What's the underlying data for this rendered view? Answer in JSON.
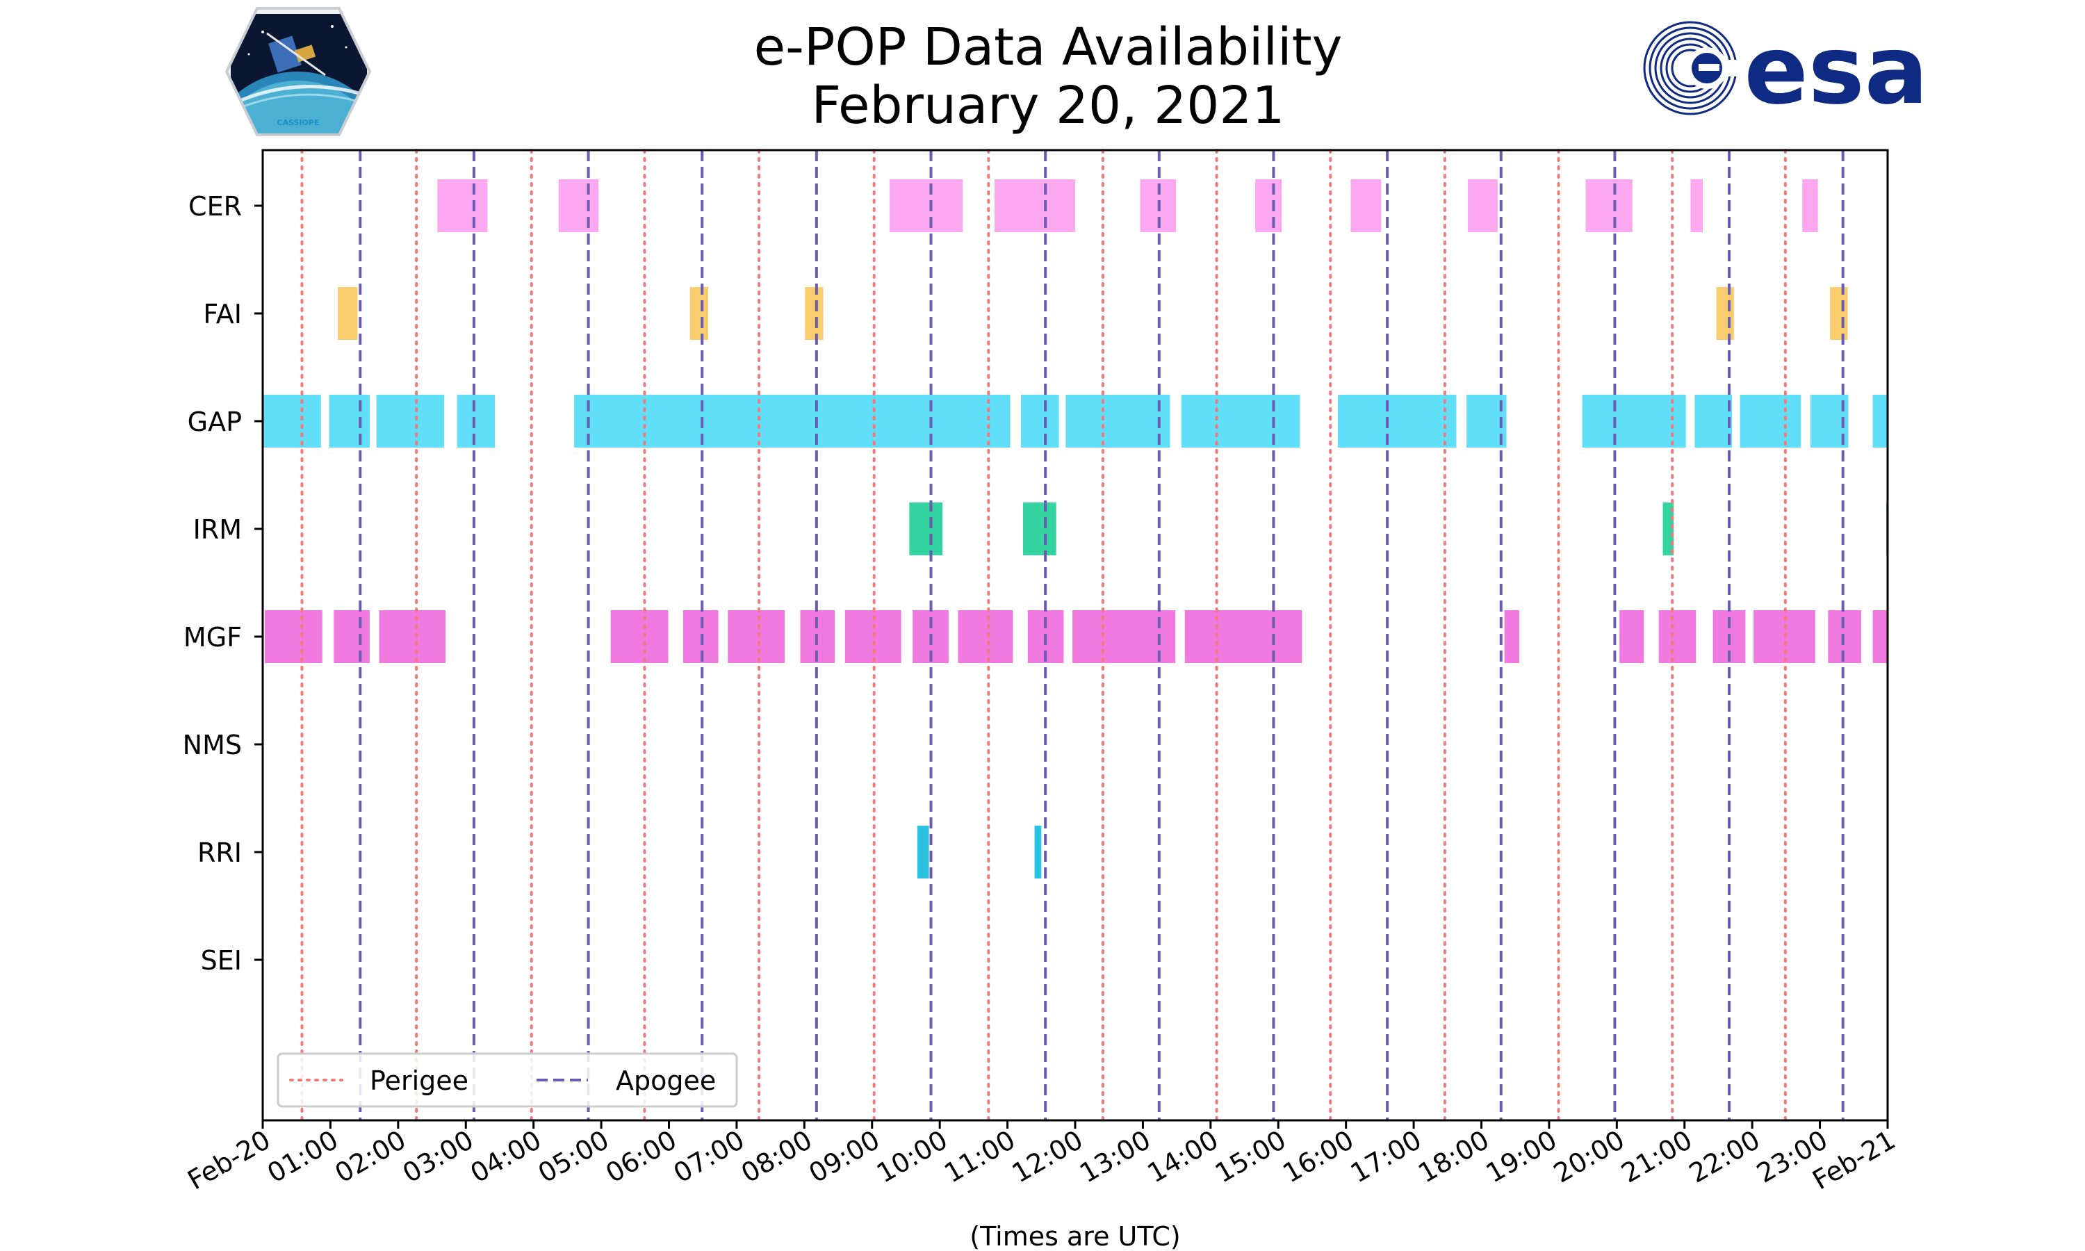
{
  "title_line1": "e-POP Data Availability",
  "title_line2": "February 20, 2021",
  "x_axis_label": "(Times are UTC)",
  "cassiope_logo_text": "CASSIOPE",
  "esa_logo_text": "esa",
  "legend": {
    "perigee": "Perigee",
    "apogee": "Apogee"
  },
  "colors": {
    "perigee": "#f07a7a",
    "apogee": "#6a5cb0",
    "CER": "#fca8f0",
    "FAI": "#f9cd6e",
    "GAP": "#62dff8",
    "IRM": "#33d4a0",
    "MGF": "#f07ae0",
    "RRI": "#29c3e0",
    "esa": "#0f2a82"
  },
  "chart_data": {
    "type": "timeline",
    "title": "e-POP Data Availability — February 20, 2021",
    "xlabel": "(Times are UTC)",
    "xlim_hours": [
      0,
      24
    ],
    "tick_labels": [
      "Feb-20",
      "01:00",
      "02:00",
      "03:00",
      "04:00",
      "05:00",
      "06:00",
      "07:00",
      "08:00",
      "09:00",
      "10:00",
      "11:00",
      "12:00",
      "13:00",
      "14:00",
      "15:00",
      "16:00",
      "17:00",
      "18:00",
      "19:00",
      "20:00",
      "21:00",
      "22:00",
      "23:00",
      "Feb-21"
    ],
    "instruments": [
      "CER",
      "FAI",
      "GAP",
      "IRM",
      "MGF",
      "NMS",
      "RRI",
      "SEI"
    ],
    "perigee_hours": [
      0.58,
      2.27,
      3.97,
      5.64,
      7.33,
      9.03,
      10.72,
      12.41,
      14.09,
      15.77,
      17.46,
      19.14,
      20.82,
      22.49
    ],
    "apogee_hours": [
      1.44,
      3.12,
      4.81,
      6.49,
      8.18,
      9.87,
      11.56,
      13.24,
      14.93,
      16.61,
      18.29,
      19.97,
      21.66,
      23.34
    ],
    "segments": {
      "CER": [
        [
          2.58,
          3.32
        ],
        [
          4.37,
          4.96
        ],
        [
          9.26,
          10.34
        ],
        [
          10.81,
          12.0
        ],
        [
          12.96,
          13.49
        ],
        [
          14.66,
          15.05
        ],
        [
          16.07,
          16.52
        ],
        [
          17.8,
          18.24
        ],
        [
          19.54,
          20.23
        ],
        [
          21.09,
          21.27
        ],
        [
          22.74,
          22.97
        ]
      ],
      "FAI": [
        [
          1.11,
          1.4
        ],
        [
          6.31,
          6.58
        ],
        [
          8.01,
          8.28
        ],
        [
          21.47,
          21.73
        ],
        [
          23.15,
          23.41
        ]
      ],
      "GAP": [
        [
          0.0,
          0.86
        ],
        [
          0.98,
          1.58
        ],
        [
          1.68,
          2.68
        ],
        [
          2.87,
          3.43
        ],
        [
          4.6,
          11.04
        ],
        [
          11.2,
          11.76
        ],
        [
          11.86,
          13.4
        ],
        [
          13.57,
          15.32
        ],
        [
          15.88,
          17.63
        ],
        [
          17.78,
          18.37
        ],
        [
          19.49,
          21.02
        ],
        [
          21.15,
          21.7
        ],
        [
          21.82,
          22.72
        ],
        [
          22.86,
          23.42
        ],
        [
          23.78,
          24.0
        ]
      ],
      "IRM": [
        [
          9.55,
          10.04
        ],
        [
          11.23,
          11.72
        ],
        [
          20.68,
          20.84
        ],
        [
          23.98,
          24.0
        ]
      ],
      "MGF": [
        [
          0.03,
          0.88
        ],
        [
          1.05,
          1.58
        ],
        [
          1.72,
          2.7
        ],
        [
          5.14,
          5.99
        ],
        [
          6.21,
          6.73
        ],
        [
          6.87,
          7.71
        ],
        [
          7.94,
          8.45
        ],
        [
          8.6,
          9.43
        ],
        [
          9.6,
          10.13
        ],
        [
          10.27,
          11.08
        ],
        [
          11.3,
          11.83
        ],
        [
          11.96,
          13.48
        ],
        [
          13.62,
          15.35
        ],
        [
          18.34,
          18.56
        ],
        [
          20.04,
          20.4
        ],
        [
          20.62,
          21.17
        ],
        [
          21.42,
          21.9
        ],
        [
          22.02,
          22.93
        ],
        [
          23.12,
          23.61
        ],
        [
          23.78,
          24.0
        ]
      ],
      "NMS": [],
      "RRI": [
        [
          9.67,
          9.84
        ],
        [
          11.4,
          11.5
        ]
      ],
      "SEI": []
    }
  }
}
